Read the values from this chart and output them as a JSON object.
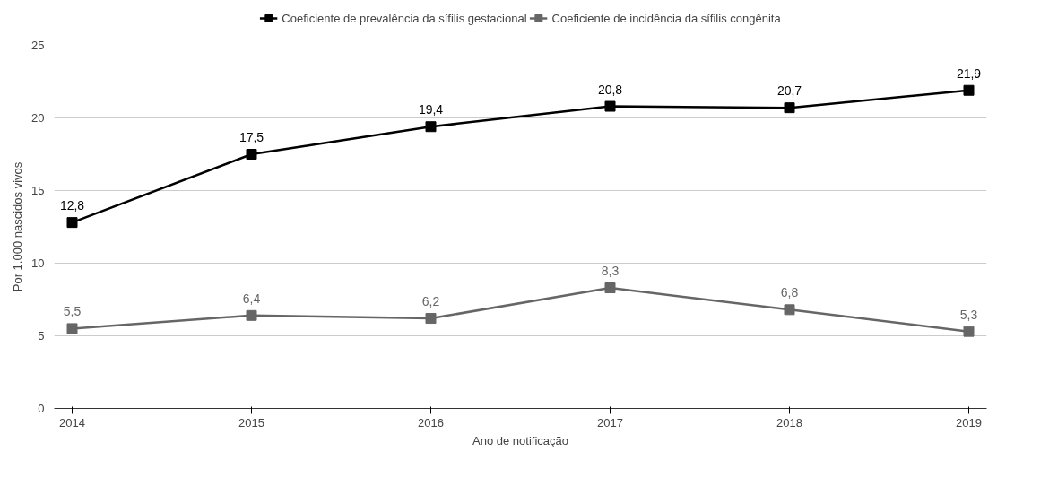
{
  "chart_data": {
    "type": "line",
    "xlabel": "Ano de notificação",
    "ylabel": "Por 1.000 nascidos vivos",
    "categories": [
      "2014",
      "2015",
      "2016",
      "2017",
      "2018",
      "2019"
    ],
    "series": [
      {
        "name": "Coeficiente de prevalência da sífilis gestacional",
        "color": "#000000",
        "values": [
          12.8,
          17.5,
          19.4,
          20.8,
          20.7,
          21.9
        ],
        "value_labels": [
          "12,8",
          "17,5",
          "19,4",
          "20,8",
          "20,7",
          "21,9"
        ]
      },
      {
        "name": "Coeficiente de incidência da sífilis congênita",
        "color": "#666666",
        "values": [
          5.5,
          6.4,
          6.2,
          8.3,
          6.8,
          5.3
        ],
        "value_labels": [
          "5,5",
          "6,4",
          "6,2",
          "8,3",
          "6,8",
          "5,3"
        ]
      }
    ],
    "ylim": [
      0,
      25
    ],
    "yticks": [
      0,
      5,
      10,
      15,
      20,
      25
    ],
    "grid": "y",
    "legend": "top",
    "marker": "square",
    "line_style": "solid"
  }
}
